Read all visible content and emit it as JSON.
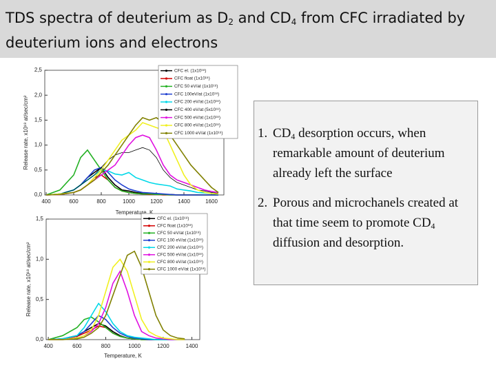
{
  "header": {
    "title": [
      "TDS spectra of deuterium as D",
      "2",
      " and CD",
      "4",
      " from CFC irradiated by deuterium ions and electrons"
    ]
  },
  "chart_data": [
    {
      "type": "line",
      "ylabel": "Release rate, x10¹⁸ at/sec/cm²",
      "xlabel": "Temperature, K",
      "x": [
        400,
        500,
        600,
        650,
        700,
        750,
        800,
        850,
        900,
        950,
        1000,
        1050,
        1100,
        1150,
        1200,
        1250,
        1300,
        1350,
        1400,
        1450,
        1500,
        1550,
        1600,
        1650
      ],
      "xlim": [
        390,
        1690
      ],
      "xticks": [
        400,
        600,
        800,
        1000,
        1200,
        1400,
        1600
      ],
      "ylim": [
        0,
        2.5
      ],
      "yticks": [
        {
          "value": 0,
          "label": "0,0"
        },
        {
          "value": 0.5,
          "label": "0,5"
        },
        {
          "value": 1,
          "label": "1,0"
        },
        {
          "value": 1.5,
          "label": "1,5"
        },
        {
          "value": 2,
          "label": "2,0"
        },
        {
          "value": 2.5,
          "label": "2,5"
        }
      ],
      "legend": "upper right",
      "series": [
        {
          "name": "CFC el. (1x10¹⁸)",
          "color": "#000000",
          "values": [
            0,
            0.02,
            0.1,
            0.2,
            0.35,
            0.45,
            0.55,
            0.35,
            0.2,
            0.1,
            0.08,
            0.05,
            0.03,
            0.02,
            0.02,
            0.01,
            0.01,
            0,
            0,
            0,
            0,
            0,
            0,
            0
          ]
        },
        {
          "name": "CFC float (1x10¹⁸)",
          "color": "#d40000",
          "values": [
            0,
            0.01,
            0.05,
            0.1,
            0.2,
            0.35,
            0.4,
            0.3,
            0.15,
            0.08,
            0.05,
            0.03,
            0.02,
            0.01,
            0.01,
            0,
            0,
            0,
            0,
            0,
            0,
            0,
            0,
            0
          ]
        },
        {
          "name": "CFC 50 eV/at (1x10¹⁸)",
          "color": "#22b022",
          "values": [
            0,
            0.1,
            0.4,
            0.75,
            0.9,
            0.7,
            0.5,
            0.3,
            0.15,
            0.08,
            0.05,
            0.03,
            0.02,
            0.02,
            0.01,
            0.01,
            0,
            0,
            0,
            0,
            0,
            0,
            0,
            0
          ]
        },
        {
          "name": "CFC 100eV/at (1x10¹⁸)",
          "color": "#1f3fd0",
          "values": [
            0,
            0.02,
            0.1,
            0.2,
            0.35,
            0.5,
            0.55,
            0.45,
            0.3,
            0.2,
            0.12,
            0.08,
            0.05,
            0.04,
            0.03,
            0.02,
            0.01,
            0,
            0,
            0,
            0,
            0,
            0,
            0
          ]
        },
        {
          "name": "CFC 200 eV/at (1x10¹⁸)",
          "color": "#00d8e8",
          "values": [
            0,
            0.02,
            0.1,
            0.2,
            0.3,
            0.4,
            0.5,
            0.48,
            0.42,
            0.4,
            0.45,
            0.35,
            0.3,
            0.25,
            0.22,
            0.2,
            0.18,
            0.12,
            0.1,
            0.08,
            0.05,
            0.04,
            0.03,
            0.02
          ]
        },
        {
          "name": "CFC 400 eV/at (5x10¹⁸)",
          "color": "#000000",
          "values": [
            0,
            0.02,
            0.1,
            0.2,
            0.3,
            0.4,
            0.55,
            0.7,
            0.8,
            0.85,
            0.85,
            0.9,
            0.95,
            0.9,
            0.75,
            0.5,
            0.35,
            0.25,
            0.2,
            0.15,
            0.1,
            0.08,
            0.05,
            0.03
          ]
        },
        {
          "name": "CFC 500 eV/at (1x10¹⁸)",
          "color": "#e010e0",
          "values": [
            0,
            0.01,
            0.05,
            0.1,
            0.2,
            0.3,
            0.4,
            0.5,
            0.6,
            0.8,
            1.0,
            1.15,
            1.2,
            1.15,
            0.9,
            0.6,
            0.4,
            0.3,
            0.25,
            0.2,
            0.15,
            0.1,
            0.07,
            0.05
          ]
        },
        {
          "name": "CFC 800 eV/at (1x10¹⁸)",
          "color": "#f0f020",
          "values": [
            0,
            0.02,
            0.05,
            0.1,
            0.2,
            0.35,
            0.5,
            0.7,
            0.9,
            1.1,
            1.2,
            1.3,
            1.45,
            1.4,
            1.35,
            1.3,
            1.0,
            0.7,
            0.4,
            0.2,
            0.1,
            0.05,
            0.03,
            0.02
          ]
        },
        {
          "name": "CFC 1000 eV/at (1x10¹⁸)",
          "color": "#808000",
          "values": [
            0,
            0.01,
            0.05,
            0.1,
            0.2,
            0.3,
            0.45,
            0.6,
            0.8,
            1.0,
            1.2,
            1.4,
            1.55,
            1.5,
            1.55,
            1.45,
            1.2,
            1.0,
            0.8,
            0.6,
            0.45,
            0.3,
            0.15,
            0.05
          ]
        }
      ]
    },
    {
      "type": "line",
      "ylabel": "Release rate, x10¹⁸ at/sec/cm²",
      "xlabel": "Temperature, K",
      "x": [
        400,
        500,
        600,
        650,
        700,
        750,
        800,
        850,
        900,
        950,
        1000,
        1050,
        1100,
        1150,
        1200,
        1250,
        1300,
        1350
      ],
      "xlim": [
        385,
        1455
      ],
      "xticks": [
        400,
        600,
        800,
        1000,
        1200,
        1400
      ],
      "ylim": [
        0,
        1.5
      ],
      "yticks": [
        {
          "value": 0,
          "label": "0,0"
        },
        {
          "value": 0.5,
          "label": "0,5"
        },
        {
          "value": 1,
          "label": "1,0"
        },
        {
          "value": 1.5,
          "label": "1,5"
        }
      ],
      "legend": "upper right",
      "series": [
        {
          "name": "CFC el. (1x10¹⁸)",
          "color": "#000000",
          "values": [
            0,
            0.01,
            0.05,
            0.1,
            0.15,
            0.2,
            0.17,
            0.1,
            0.05,
            0.02,
            0.01,
            0,
            0,
            0,
            0,
            0,
            0,
            0
          ]
        },
        {
          "name": "CFC float (1x10¹⁸)",
          "color": "#d40000",
          "values": [
            0,
            0.01,
            0.04,
            0.08,
            0.12,
            0.17,
            0.15,
            0.08,
            0.04,
            0.02,
            0.01,
            0,
            0,
            0,
            0,
            0,
            0,
            0
          ]
        },
        {
          "name": "CFC 50 eV/at (1x10¹⁸)",
          "color": "#22b022",
          "values": [
            0,
            0.05,
            0.15,
            0.25,
            0.28,
            0.22,
            0.15,
            0.08,
            0.04,
            0.02,
            0.01,
            0,
            0,
            0,
            0,
            0,
            0,
            0
          ]
        },
        {
          "name": "CFC 100 eV/at (1x10¹⁸)",
          "color": "#1f3fd0",
          "values": [
            0,
            0.01,
            0.05,
            0.1,
            0.2,
            0.3,
            0.25,
            0.15,
            0.08,
            0.04,
            0.02,
            0.01,
            0,
            0,
            0,
            0,
            0,
            0
          ]
        },
        {
          "name": "CFC 200 eV/at (1x10¹⁸)",
          "color": "#00d8e8",
          "values": [
            0,
            0.01,
            0.05,
            0.15,
            0.3,
            0.45,
            0.35,
            0.2,
            0.1,
            0.05,
            0.03,
            0.02,
            0.01,
            0,
            0,
            0,
            0,
            0
          ]
        },
        {
          "name": "CFC 500 eV/at (1x10¹⁸)",
          "color": "#e010e0",
          "values": [
            0,
            0,
            0.02,
            0.05,
            0.1,
            0.2,
            0.4,
            0.7,
            0.85,
            0.6,
            0.3,
            0.1,
            0.05,
            0.02,
            0.01,
            0,
            0,
            0
          ]
        },
        {
          "name": "CFC 800 eV/at (1x10¹⁸)",
          "color": "#f0f020",
          "values": [
            0,
            0,
            0.02,
            0.05,
            0.12,
            0.3,
            0.6,
            0.9,
            1.0,
            0.85,
            0.55,
            0.25,
            0.1,
            0.05,
            0.02,
            0.01,
            0,
            0
          ]
        },
        {
          "name": "CFC 1000 eV/at (1x10¹⁸)",
          "color": "#808000",
          "values": [
            0,
            0,
            0.01,
            0.03,
            0.08,
            0.15,
            0.3,
            0.55,
            0.8,
            1.05,
            1.1,
            0.9,
            0.6,
            0.3,
            0.12,
            0.05,
            0.02,
            0.01
          ]
        }
      ]
    }
  ],
  "text_box": {
    "items": [
      {
        "number": "1.",
        "text": [
          "CD",
          "4",
          " desorption occurs, when remarkable amount of deuterium already left the surface"
        ]
      },
      {
        "number": "2.",
        "text": [
          "Porous and microchanels created at that time seem to promote CD",
          "4",
          " diffusion and desorption."
        ]
      }
    ]
  }
}
